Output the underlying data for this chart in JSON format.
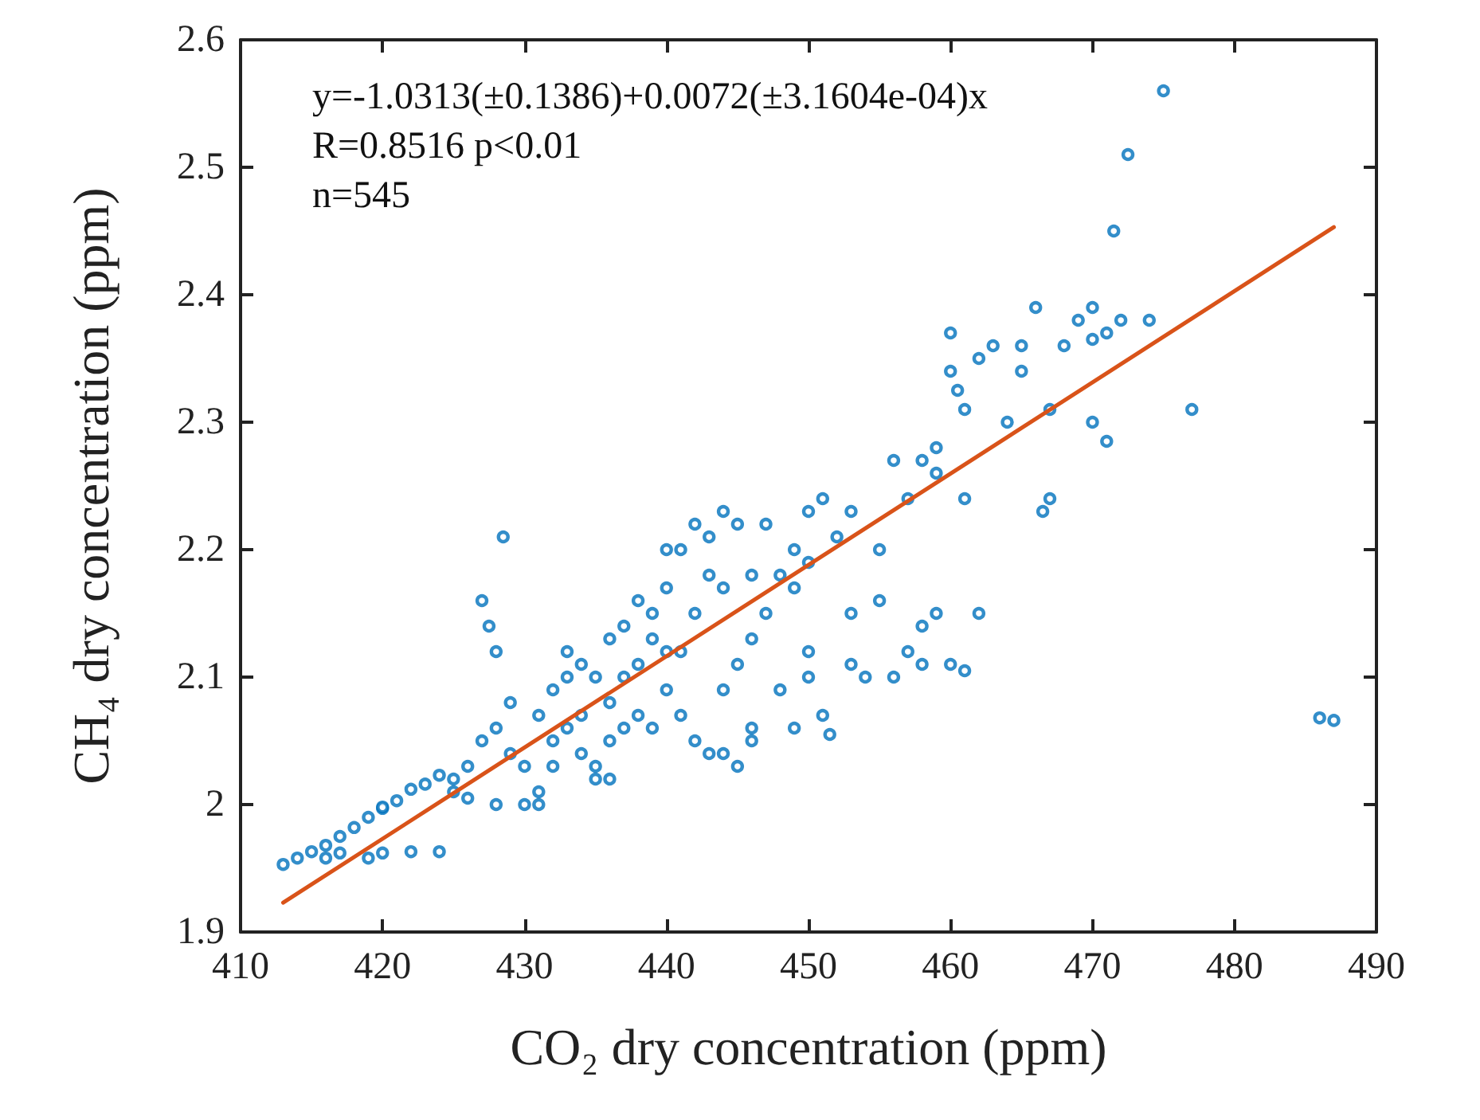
{
  "chart_data": {
    "type": "scatter",
    "xlabel": "CO₂ dry concentration (ppm)",
    "ylabel": "CH₄ dry concentration (ppm)",
    "xlim": [
      410,
      490
    ],
    "xticks": [
      410,
      420,
      430,
      440,
      450,
      460,
      470,
      480,
      490
    ],
    "ylim": [
      1.9,
      2.6
    ],
    "yticks": [
      1.9,
      2,
      2.1,
      2.2,
      2.3,
      2.4,
      2.5,
      2.6
    ],
    "grid": false,
    "marker": "circle",
    "annotations": [
      "y=-1.0313(±0.1386)+0.0072(±3.1604e-04)x",
      "R=0.8516 p<0.01",
      "n=545"
    ],
    "series": [
      {
        "color": "#0072bd",
        "x": [
          413,
          414,
          415,
          416,
          417,
          418,
          419,
          420,
          416,
          417,
          419,
          420,
          422,
          424,
          420,
          421,
          422,
          423,
          424,
          425,
          425,
          426,
          427,
          427,
          427.5,
          428,
          428.5,
          429,
          428,
          429,
          430,
          426,
          428,
          430,
          431,
          432,
          431,
          432,
          433,
          434,
          433,
          434,
          435,
          435,
          436,
          434,
          436,
          437,
          436,
          437,
          438,
          439,
          440,
          440,
          441,
          442,
          443,
          444,
          445,
          443,
          442,
          441,
          440,
          441,
          442,
          443,
          444,
          445,
          446,
          444,
          445,
          446,
          447,
          448,
          449,
          450,
          451,
          449,
          450,
          447,
          452,
          453,
          450,
          450,
          451,
          451.5,
          449,
          448,
          446,
          438,
          437,
          439,
          436,
          438,
          439,
          435,
          433,
          432,
          431,
          453,
          454,
          453,
          455,
          455,
          456,
          457,
          458,
          459,
          459,
          460,
          460,
          460.5,
          461,
          461,
          462,
          463,
          464,
          465,
          465,
          466,
          466.5,
          467,
          467,
          468,
          469,
          470,
          470,
          471,
          470,
          471,
          471.5,
          472,
          472.5,
          475,
          474,
          477,
          458,
          458,
          459,
          456,
          457,
          460,
          461,
          462,
          486,
          487,
          440,
          444,
          446
        ],
        "values": [
          1.953,
          1.958,
          1.963,
          1.968,
          1.975,
          1.982,
          1.99,
          1.997,
          1.958,
          1.962,
          1.958,
          1.962,
          1.963,
          1.963,
          1.998,
          2.003,
          2.012,
          2.016,
          2.023,
          2.02,
          2.01,
          2.03,
          2.05,
          2.16,
          2.14,
          2.12,
          2.21,
          2.08,
          2.06,
          2.04,
          2.03,
          2.005,
          2.0,
          2.0,
          2.01,
          2.05,
          2.07,
          2.09,
          2.1,
          2.11,
          2.06,
          2.04,
          2.03,
          2.02,
          2.02,
          2.07,
          2.08,
          2.1,
          2.13,
          2.14,
          2.16,
          2.15,
          2.12,
          2.17,
          2.2,
          2.22,
          2.21,
          2.23,
          2.22,
          2.18,
          2.15,
          2.12,
          2.09,
          2.07,
          2.05,
          2.04,
          2.04,
          2.03,
          2.06,
          2.09,
          2.11,
          2.13,
          2.15,
          2.18,
          2.2,
          2.23,
          2.24,
          2.17,
          2.19,
          2.22,
          2.21,
          2.23,
          2.12,
          2.1,
          2.07,
          2.055,
          2.06,
          2.09,
          2.05,
          2.07,
          2.06,
          2.06,
          2.05,
          2.11,
          2.13,
          2.1,
          2.12,
          2.03,
          2.0,
          2.11,
          2.1,
          2.15,
          2.16,
          2.2,
          2.27,
          2.24,
          2.27,
          2.26,
          2.28,
          2.37,
          2.34,
          2.325,
          2.24,
          2.31,
          2.35,
          2.36,
          2.3,
          2.36,
          2.34,
          2.39,
          2.23,
          2.31,
          2.24,
          2.36,
          2.38,
          2.39,
          2.365,
          2.37,
          2.3,
          2.285,
          2.45,
          2.38,
          2.51,
          2.56,
          2.38,
          2.31,
          2.14,
          2.11,
          2.15,
          2.1,
          2.12,
          2.11,
          2.105,
          2.15,
          2.068,
          2.066,
          2.2,
          2.17,
          2.18
        ]
      },
      {
        "type": "line",
        "color": "#d95319",
        "marker": "none",
        "line_style": "solid",
        "x": [
          413,
          487
        ],
        "values": [
          1.923,
          2.453
        ]
      }
    ]
  }
}
